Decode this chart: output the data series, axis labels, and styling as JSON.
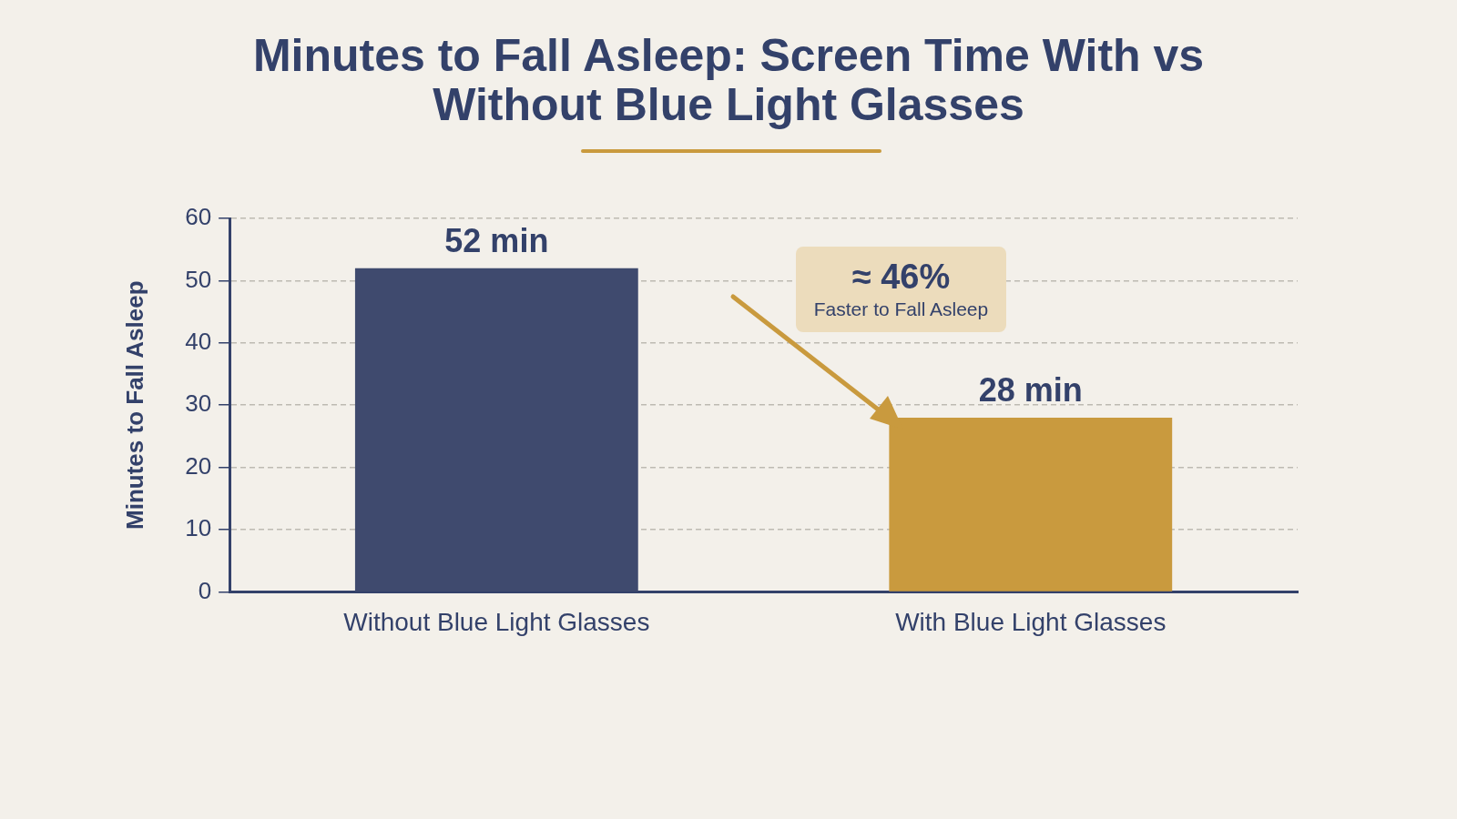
{
  "chart_data": {
    "type": "bar",
    "title": "Minutes to Fall Asleep: Screen Time With vs Without Blue Light Glasses",
    "ylabel": "Minutes to Fall Asleep",
    "categories": [
      "Without Blue Light Glasses",
      "With Blue Light Glasses"
    ],
    "values": [
      52,
      28
    ],
    "colors": [
      "#3f4a6e",
      "#c99a3e"
    ],
    "value_labels": [
      "52 min",
      "28 min"
    ],
    "ylim": [
      0,
      60
    ],
    "yticks": [
      0,
      10,
      20,
      30,
      40,
      50,
      60
    ],
    "grid": "y",
    "annotations": [
      "≈ 46%",
      "Faster to Fall Asleep"
    ]
  }
}
